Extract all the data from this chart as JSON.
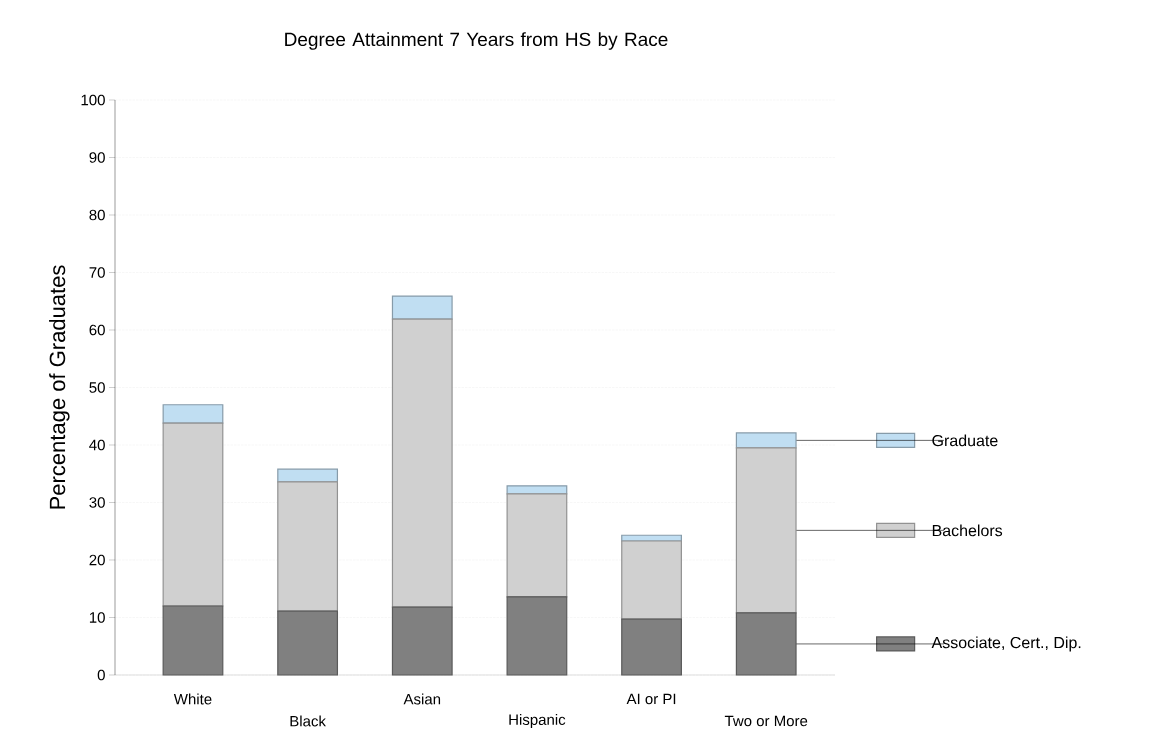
{
  "chart_data": {
    "type": "bar",
    "stacked": true,
    "title": "Degree Attainment 7 Years from HS by Race",
    "ylabel": "Percentage of Graduates",
    "categories": [
      "White",
      "Black",
      "Asian",
      "Hispanic",
      "AI or PI",
      "Two or More"
    ],
    "series": [
      {
        "name": "Associate, Cert., Dip.",
        "color": "#808080",
        "values": [
          12.0,
          11.1,
          11.8,
          13.6,
          9.7,
          10.8
        ]
      },
      {
        "name": "Bachelors",
        "color": "#d0d0d0",
        "values": [
          31.8,
          22.5,
          50.1,
          17.9,
          13.6,
          28.7
        ]
      },
      {
        "name": "Graduate",
        "color": "#c0def2",
        "values": [
          3.2,
          2.2,
          4.0,
          1.4,
          1.0,
          2.6
        ]
      }
    ],
    "ylim": [
      0,
      100
    ],
    "yticks": [
      0,
      10,
      20,
      30,
      40,
      50,
      60,
      70,
      80,
      90,
      100
    ],
    "grid": "y",
    "legend": "right"
  }
}
